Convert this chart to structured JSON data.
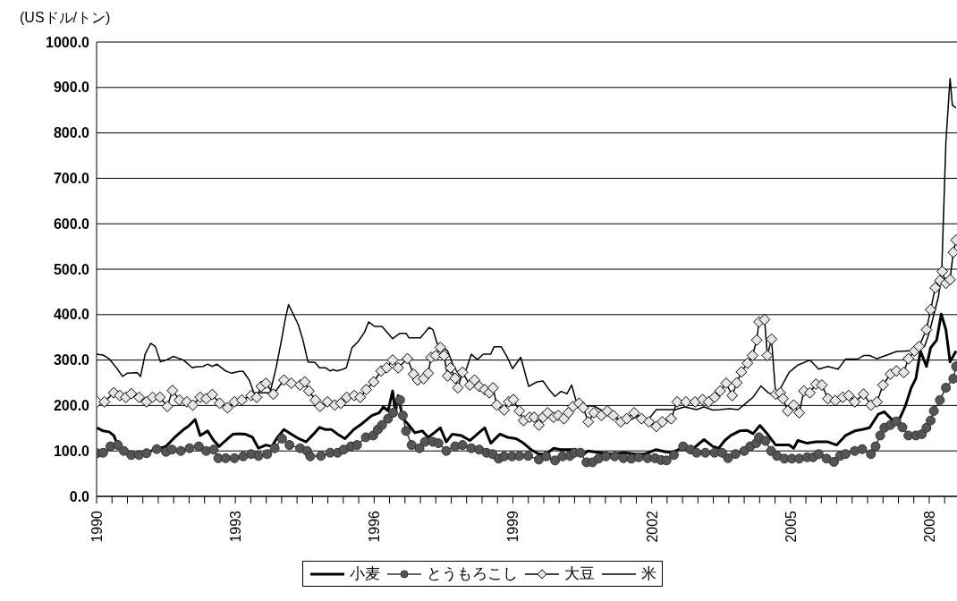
{
  "chart_data": {
    "type": "line",
    "ylabel": "(USドル/トン)",
    "xlim": [
      1990,
      2008.6
    ],
    "ylim": [
      0,
      1000
    ],
    "yticks": [
      {
        "value": 0,
        "label": "0.0"
      },
      {
        "value": 100,
        "label": "100.0"
      },
      {
        "value": 200,
        "label": "200.0"
      },
      {
        "value": 300,
        "label": "300.0"
      },
      {
        "value": 400,
        "label": "400.0"
      },
      {
        "value": 500,
        "label": "500.0"
      },
      {
        "value": 600,
        "label": "600.0"
      },
      {
        "value": 700,
        "label": "700.0"
      },
      {
        "value": 800,
        "label": "800.0"
      },
      {
        "value": 900,
        "label": "900.0"
      },
      {
        "value": 1000,
        "label": "1000.0"
      }
    ],
    "xticks": [
      1990,
      {
        "value": 1990.333,
        "label": null
      },
      {
        "value": 1990.667,
        "label": null
      },
      {
        "value": 1991,
        "label": null
      },
      {
        "value": 1991.333,
        "label": null
      },
      {
        "value": 1991.667,
        "label": null
      },
      {
        "value": 1992,
        "label": null
      },
      {
        "value": 1992.333,
        "label": null
      },
      {
        "value": 1992.667,
        "label": null
      },
      1993,
      {
        "value": 1993.333,
        "label": null
      },
      {
        "value": 1993.667,
        "label": null
      },
      {
        "value": 1994,
        "label": null
      },
      {
        "value": 1994.333,
        "label": null
      },
      {
        "value": 1994.667,
        "label": null
      },
      {
        "value": 1995,
        "label": null
      },
      {
        "value": 1995.333,
        "label": null
      },
      {
        "value": 1995.667,
        "label": null
      },
      1996,
      {
        "value": 1996.333,
        "label": null
      },
      {
        "value": 1996.667,
        "label": null
      },
      {
        "value": 1997,
        "label": null
      },
      {
        "value": 1997.333,
        "label": null
      },
      {
        "value": 1997.667,
        "label": null
      },
      {
        "value": 1998,
        "label": null
      },
      {
        "value": 1998.333,
        "label": null
      },
      {
        "value": 1998.667,
        "label": null
      },
      1999,
      {
        "value": 1999.333,
        "label": null
      },
      {
        "value": 1999.667,
        "label": null
      },
      {
        "value": 2000,
        "label": null
      },
      {
        "value": 2000.333,
        "label": null
      },
      {
        "value": 2000.667,
        "label": null
      },
      {
        "value": 2001,
        "label": null
      },
      {
        "value": 2001.333,
        "label": null
      },
      {
        "value": 2001.667,
        "label": null
      },
      2002,
      {
        "value": 2002.333,
        "label": null
      },
      {
        "value": 2002.667,
        "label": null
      },
      {
        "value": 2003,
        "label": null
      },
      {
        "value": 2003.333,
        "label": null
      },
      {
        "value": 2003.667,
        "label": null
      },
      {
        "value": 2004,
        "label": null
      },
      {
        "value": 2004.333,
        "label": null
      },
      {
        "value": 2004.667,
        "label": null
      },
      2005,
      {
        "value": 2005.333,
        "label": null
      },
      {
        "value": 2005.667,
        "label": null
      },
      {
        "value": 2006,
        "label": null
      },
      {
        "value": 2006.333,
        "label": null
      },
      {
        "value": 2006.667,
        "label": null
      },
      {
        "value": 2007,
        "label": null
      },
      {
        "value": 2007.333,
        "label": null
      },
      {
        "value": 2007.667,
        "label": null
      },
      2008,
      {
        "value": 2008.333,
        "label": null
      }
    ],
    "grid": "y",
    "legend": "bottom",
    "line_style": "solid",
    "series": [
      {
        "name": "小麦",
        "color": "#000000",
        "marker": "none",
        "x": [
          1990.01,
          1990.14,
          1990.27,
          1990.37,
          1990.46,
          1990.59,
          1990.79,
          1990.98,
          1991.24,
          1991.5,
          1991.69,
          1991.88,
          1991.98,
          1992.13,
          1992.24,
          1992.4,
          1992.53,
          1992.65,
          1992.79,
          1992.95,
          1993.08,
          1993.21,
          1993.37,
          1993.5,
          1993.66,
          1993.79,
          1993.91,
          1994.05,
          1994.21,
          1994.37,
          1994.53,
          1994.69,
          1994.82,
          1994.95,
          1995.08,
          1995.21,
          1995.37,
          1995.56,
          1995.75,
          1995.95,
          1996.11,
          1996.2,
          1996.3,
          1996.4,
          1996.46,
          1996.52,
          1996.62,
          1996.75,
          1996.88,
          1997.04,
          1997.17,
          1997.3,
          1997.43,
          1997.56,
          1997.69,
          1997.88,
          1998.07,
          1998.23,
          1998.39,
          1998.52,
          1998.72,
          1998.88,
          1999.07,
          1999.23,
          1999.39,
          1999.56,
          1999.72,
          1999.88,
          2000.04,
          2000.2,
          2000.36,
          2000.49,
          2000.62,
          2000.88,
          2001.14,
          2001.4,
          2001.65,
          2001.85,
          2002.1,
          2002.3,
          2002.45,
          2002.65,
          2002.84,
          2003.13,
          2003.32,
          2003.45,
          2003.58,
          2003.71,
          2003.9,
          2004.07,
          2004.19,
          2004.34,
          2004.48,
          2004.68,
          2004.97,
          2005.07,
          2005.16,
          2005.36,
          2005.55,
          2005.81,
          2006.0,
          2006.19,
          2006.39,
          2006.55,
          2006.71,
          2006.9,
          2007.03,
          2007.19,
          2007.36,
          2007.48,
          2007.61,
          2007.71,
          2007.81,
          2007.94,
          2008.03,
          2008.16,
          2008.26,
          2008.36,
          2008.45,
          2008.58
        ],
        "values": [
          151,
          144,
          142,
          134,
          113,
          103,
          89,
          93,
          102,
          110,
          130,
          147,
          154,
          169,
          134,
          144,
          123,
          110,
          123,
          137,
          138,
          137,
          130,
          106,
          113,
          110,
          130,
          147,
          137,
          127,
          120,
          137,
          152,
          147,
          147,
          137,
          127,
          147,
          161,
          178,
          184,
          197,
          188,
          232,
          184,
          222,
          171,
          157,
          140,
          144,
          130,
          140,
          151,
          120,
          137,
          134,
          123,
          137,
          151,
          117,
          137,
          130,
          127,
          117,
          103,
          93,
          93,
          106,
          103,
          103,
          103,
          89,
          100,
          96,
          93,
          96,
          93,
          93,
          103,
          98,
          97,
          106,
          100,
          125,
          110,
          106,
          123,
          134,
          144,
          145,
          138,
          156,
          140,
          113,
          113,
          106,
          123,
          117,
          120,
          120,
          113,
          134,
          144,
          147,
          151,
          181,
          186,
          169,
          171,
          198,
          239,
          259,
          320,
          286,
          327,
          344,
          401,
          367,
          296,
          320
        ]
      },
      {
        "name": "とうもろこし",
        "color": "#333333",
        "marker": "circle",
        "x": [
          1990.01,
          1990.14,
          1990.3,
          1990.46,
          1990.59,
          1990.75,
          1990.92,
          1991.08,
          1991.3,
          1991.5,
          1991.63,
          1991.82,
          1992.01,
          1992.21,
          1992.37,
          1992.53,
          1992.63,
          1992.79,
          1992.98,
          1993.17,
          1993.34,
          1993.5,
          1993.69,
          1993.85,
          1994.01,
          1994.17,
          1994.4,
          1994.55,
          1994.62,
          1994.85,
          1995.05,
          1995.21,
          1995.34,
          1995.5,
          1995.63,
          1995.82,
          1995.98,
          1996.08,
          1996.17,
          1996.3,
          1996.41,
          1996.56,
          1996.62,
          1996.69,
          1996.81,
          1996.98,
          1997.1,
          1997.27,
          1997.39,
          1997.56,
          1997.75,
          1997.91,
          1998.1,
          1998.27,
          1998.43,
          1998.56,
          1998.69,
          1998.81,
          1998.98,
          1999.14,
          1999.33,
          1999.56,
          1999.72,
          1999.91,
          2000.07,
          2000.23,
          2000.33,
          2000.46,
          2000.59,
          2000.72,
          2000.85,
          2001.01,
          2001.2,
          2001.39,
          2001.56,
          2001.72,
          2001.91,
          2002.07,
          2002.2,
          2002.32,
          2002.48,
          2002.68,
          2002.84,
          2002.97,
          2003.16,
          2003.36,
          2003.52,
          2003.65,
          2003.81,
          2004.0,
          2004.13,
          2004.26,
          2004.32,
          2004.46,
          2004.58,
          2004.71,
          2004.87,
          2005.03,
          2005.19,
          2005.36,
          2005.49,
          2005.61,
          2005.78,
          2005.94,
          2006.07,
          2006.19,
          2006.39,
          2006.55,
          2006.74,
          2006.84,
          2006.94,
          2007.03,
          2007.16,
          2007.29,
          2007.42,
          2007.55,
          2007.71,
          2007.84,
          2007.94,
          2008.03,
          2008.1,
          2008.23,
          2008.36,
          2008.52,
          2008.58
        ],
        "values": [
          95,
          96,
          110,
          113,
          100,
          91,
          91,
          95,
          104,
          98,
          103,
          100,
          106,
          110,
          100,
          103,
          84,
          84,
          84,
          88,
          93,
          89,
          93,
          106,
          127,
          113,
          106,
          100,
          88,
          89,
          96,
          96,
          103,
          110,
          113,
          130,
          134,
          147,
          157,
          171,
          184,
          212,
          178,
          144,
          113,
          106,
          120,
          120,
          117,
          100,
          110,
          113,
          106,
          103,
          96,
          93,
          83,
          88,
          88,
          89,
          89,
          81,
          88,
          79,
          88,
          89,
          96,
          96,
          75,
          75,
          83,
          88,
          88,
          84,
          83,
          86,
          84,
          84,
          80,
          79,
          91,
          110,
          103,
          96,
          96,
          96,
          96,
          84,
          93,
          100,
          110,
          117,
          130,
          122,
          100,
          89,
          83,
          83,
          83,
          86,
          86,
          93,
          83,
          76,
          89,
          93,
          100,
          104,
          93,
          110,
          134,
          151,
          157,
          165,
          152,
          134,
          134,
          137,
          151,
          167,
          188,
          212,
          239,
          259,
          286
        ]
      },
      {
        "name": "大豆",
        "color": "#000000",
        "marker": "diamond",
        "x": [
          1990.01,
          1990.17,
          1990.37,
          1990.5,
          1990.63,
          1990.75,
          1990.92,
          1991.08,
          1991.21,
          1991.37,
          1991.53,
          1991.64,
          1991.79,
          1991.95,
          1992.08,
          1992.24,
          1992.37,
          1992.5,
          1992.66,
          1992.83,
          1992.98,
          1993.14,
          1993.34,
          1993.46,
          1993.56,
          1993.66,
          1993.82,
          1994.05,
          1994.21,
          1994.4,
          1994.5,
          1994.59,
          1994.73,
          1994.83,
          1994.99,
          1995.15,
          1995.28,
          1995.41,
          1995.57,
          1995.7,
          1995.83,
          1995.99,
          1996.15,
          1996.27,
          1996.4,
          1996.52,
          1996.72,
          1996.85,
          1996.94,
          1997.07,
          1997.17,
          1997.23,
          1997.33,
          1997.43,
          1997.51,
          1997.59,
          1997.65,
          1997.75,
          1997.81,
          1997.91,
          1998.07,
          1998.17,
          1998.27,
          1998.39,
          1998.49,
          1998.57,
          1998.65,
          1998.81,
          1998.91,
          1999.01,
          1999.14,
          1999.23,
          1999.36,
          1999.46,
          1999.56,
          1999.65,
          1999.75,
          1999.88,
          1999.98,
          2000.1,
          2000.2,
          2000.3,
          2000.43,
          2000.52,
          2000.63,
          2000.75,
          2000.91,
          2001.04,
          2001.17,
          2001.33,
          2001.46,
          2001.62,
          2001.78,
          2001.94,
          2002.1,
          2002.23,
          2002.42,
          2002.55,
          2002.74,
          2002.94,
          2003.1,
          2003.23,
          2003.36,
          2003.48,
          2003.61,
          2003.74,
          2003.84,
          2003.94,
          2004.07,
          2004.18,
          2004.27,
          2004.32,
          2004.44,
          2004.5,
          2004.59,
          2004.68,
          2004.78,
          2004.84,
          2004.94,
          2005.07,
          2005.19,
          2005.29,
          2005.42,
          2005.55,
          2005.68,
          2005.81,
          2005.97,
          2006.13,
          2006.26,
          2006.39,
          2006.58,
          2006.74,
          2006.87,
          2007.0,
          2007.16,
          2007.29,
          2007.45,
          2007.55,
          2007.68,
          2007.78,
          2007.94,
          2008.03,
          2008.13,
          2008.23,
          2008.28,
          2008.36,
          2008.45,
          2008.52,
          2008.58
        ],
        "values": [
          208,
          208,
          228,
          222,
          218,
          226,
          218,
          208,
          218,
          218,
          198,
          233,
          212,
          208,
          201,
          218,
          215,
          224,
          205,
          195,
          208,
          212,
          222,
          218,
          242,
          249,
          225,
          256,
          249,
          245,
          252,
          232,
          212,
          198,
          208,
          201,
          205,
          218,
          222,
          218,
          235,
          252,
          276,
          283,
          300,
          283,
          303,
          269,
          256,
          259,
          271,
          306,
          310,
          328,
          310,
          265,
          283,
          260,
          239,
          273,
          245,
          256,
          242,
          235,
          228,
          239,
          201,
          190,
          208,
          213,
          188,
          167,
          174,
          174,
          157,
          174,
          184,
          174,
          178,
          171,
          184,
          198,
          205,
          195,
          164,
          184,
          178,
          188,
          178,
          164,
          171,
          184,
          171,
          164,
          154,
          164,
          171,
          208,
          208,
          208,
          213,
          208,
          218,
          232,
          249,
          222,
          250,
          274,
          293,
          310,
          344,
          384,
          389,
          310,
          346,
          225,
          228,
          215,
          188,
          201,
          184,
          232,
          228,
          247,
          245,
          215,
          211,
          218,
          222,
          208,
          225,
          201,
          208,
          245,
          269,
          276,
          273,
          303,
          320,
          330,
          367,
          411,
          459,
          475,
          495,
          469,
          477,
          537,
          564
        ]
      },
      {
        "name": "米",
        "color": "#000000",
        "marker": "none",
        "x": [
          1990.0,
          1990.14,
          1990.27,
          1990.43,
          1990.56,
          1990.66,
          1990.88,
          1990.95,
          1991.05,
          1991.17,
          1991.27,
          1991.38,
          1991.5,
          1991.66,
          1991.88,
          1992.07,
          1992.14,
          1992.3,
          1992.4,
          1992.5,
          1992.6,
          1992.79,
          1992.92,
          1993.08,
          1993.17,
          1993.3,
          1993.4,
          1993.75,
          1993.88,
          1993.99,
          1994.08,
          1994.15,
          1994.36,
          1994.46,
          1994.57,
          1994.72,
          1994.82,
          1994.95,
          1995.05,
          1995.11,
          1995.2,
          1995.3,
          1995.4,
          1995.52,
          1995.65,
          1995.79,
          1995.88,
          1996.01,
          1996.17,
          1996.4,
          1996.56,
          1996.69,
          1996.75,
          1997.0,
          1997.19,
          1997.27,
          1997.36,
          1997.59,
          1997.72,
          1997.85,
          1997.98,
          1998.1,
          1998.23,
          1998.36,
          1998.52,
          1998.59,
          1998.75,
          1998.88,
          1998.99,
          1999.17,
          1999.34,
          1999.52,
          1999.65,
          1999.78,
          1999.91,
          2000.04,
          2000.17,
          2000.27,
          2000.36,
          2000.56,
          2000.75,
          2000.94,
          2001.14,
          2001.33,
          2001.52,
          2001.72,
          2001.91,
          2002.1,
          2002.32,
          2002.52,
          2002.71,
          2002.97,
          2003.13,
          2003.32,
          2003.48,
          2003.68,
          2003.87,
          2004.07,
          2004.19,
          2004.36,
          2004.52,
          2004.65,
          2004.78,
          2004.97,
          2005.16,
          2005.42,
          2005.61,
          2005.81,
          2006.03,
          2006.19,
          2006.45,
          2006.58,
          2006.71,
          2006.87,
          2007.06,
          2007.29,
          2007.48,
          2007.68,
          2007.9,
          2008.0,
          2008.1,
          2008.2,
          2008.27,
          2008.36,
          2008.45,
          2008.5,
          2008.58
        ],
        "values": [
          313,
          311,
          303,
          283,
          264,
          271,
          272,
          264,
          313,
          337,
          330,
          296,
          300,
          308,
          300,
          283,
          285,
          286,
          291,
          286,
          291,
          276,
          271,
          275,
          275,
          256,
          228,
          228,
          283,
          340,
          391,
          422,
          378,
          344,
          296,
          295,
          283,
          283,
          276,
          279,
          276,
          279,
          283,
          327,
          340,
          361,
          384,
          374,
          374,
          347,
          359,
          359,
          349,
          349,
          372,
          367,
          337,
          320,
          286,
          266,
          276,
          313,
          301,
          313,
          313,
          329,
          329,
          306,
          281,
          306,
          242,
          252,
          254,
          235,
          220,
          231,
          226,
          245,
          212,
          199,
          199,
          188,
          178,
          167,
          167,
          178,
          167,
          191,
          191,
          191,
          197,
          191,
          197,
          190,
          191,
          193,
          191,
          208,
          218,
          243,
          228,
          222,
          237,
          273,
          289,
          300,
          280,
          286,
          280,
          302,
          302,
          310,
          310,
          303,
          310,
          319,
          320,
          321,
          330,
          360,
          400,
          440,
          495,
          780,
          920,
          861,
          855
        ]
      }
    ]
  }
}
